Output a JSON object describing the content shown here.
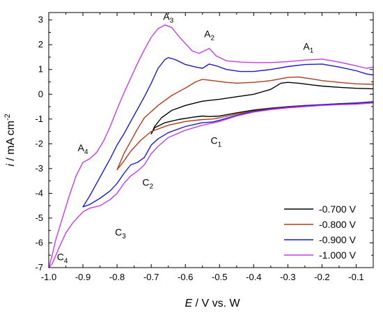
{
  "chart_data": {
    "type": "line",
    "xlabel": {
      "main": "E",
      "rest": " / V vs. W"
    },
    "ylabel": {
      "main": "i",
      "rest": " / mA cm",
      "sup": "-2"
    },
    "xlim": [
      -1.0,
      -0.05
    ],
    "ylim": [
      -7,
      3.3
    ],
    "xticks": [
      -1.0,
      -0.9,
      -0.8,
      -0.7,
      -0.6,
      -0.5,
      -0.4,
      -0.3,
      -0.2,
      -0.1
    ],
    "xtick_labels": [
      "-1.0",
      "-0.9",
      "-0.8",
      "-0.7",
      "-0.6",
      "-0.5",
      "-0.4",
      "-0.3",
      "-0.2",
      "-0.1"
    ],
    "yticks": [
      -7,
      -6,
      -5,
      -4,
      -3,
      -2,
      -1,
      0,
      1,
      2,
      3
    ],
    "ytick_labels": [
      "-7",
      "-6",
      "-5",
      "-4",
      "-3",
      "-2",
      "-1",
      "0",
      "1",
      "2",
      "3"
    ],
    "grid": false,
    "legend_position": "bottom-right",
    "series": [
      {
        "name": "-0.700 V",
        "color": "#000000",
        "points": [
          [
            -0.05,
            -0.35
          ],
          [
            -0.1,
            -0.38
          ],
          [
            -0.15,
            -0.4
          ],
          [
            -0.2,
            -0.43
          ],
          [
            -0.25,
            -0.46
          ],
          [
            -0.3,
            -0.5
          ],
          [
            -0.35,
            -0.56
          ],
          [
            -0.4,
            -0.64
          ],
          [
            -0.45,
            -0.75
          ],
          [
            -0.5,
            -0.88
          ],
          [
            -0.53,
            -0.9
          ],
          [
            -0.55,
            -0.88
          ],
          [
            -0.58,
            -0.93
          ],
          [
            -0.62,
            -1.02
          ],
          [
            -0.66,
            -1.15
          ],
          [
            -0.69,
            -1.35
          ],
          [
            -0.7,
            -1.6
          ],
          [
            -0.69,
            -1.3
          ],
          [
            -0.67,
            -0.95
          ],
          [
            -0.64,
            -0.65
          ],
          [
            -0.6,
            -0.45
          ],
          [
            -0.55,
            -0.28
          ],
          [
            -0.5,
            -0.2
          ],
          [
            -0.45,
            -0.1
          ],
          [
            -0.4,
            0.0
          ],
          [
            -0.35,
            0.2
          ],
          [
            -0.32,
            0.45
          ],
          [
            -0.3,
            0.48
          ],
          [
            -0.27,
            0.45
          ],
          [
            -0.23,
            0.38
          ],
          [
            -0.2,
            0.33
          ],
          [
            -0.15,
            0.28
          ],
          [
            -0.1,
            0.24
          ],
          [
            -0.05,
            0.22
          ]
        ]
      },
      {
        "name": "-0.800 V",
        "color": "#b03a1c",
        "points": [
          [
            -0.05,
            -0.33
          ],
          [
            -0.1,
            -0.36
          ],
          [
            -0.15,
            -0.38
          ],
          [
            -0.2,
            -0.42
          ],
          [
            -0.25,
            -0.45
          ],
          [
            -0.3,
            -0.5
          ],
          [
            -0.35,
            -0.58
          ],
          [
            -0.4,
            -0.68
          ],
          [
            -0.45,
            -0.8
          ],
          [
            -0.5,
            -0.95
          ],
          [
            -0.52,
            -1.0
          ],
          [
            -0.55,
            -1.02
          ],
          [
            -0.6,
            -1.1
          ],
          [
            -0.65,
            -1.25
          ],
          [
            -0.7,
            -1.5
          ],
          [
            -0.73,
            -1.85
          ],
          [
            -0.76,
            -2.3
          ],
          [
            -0.78,
            -2.7
          ],
          [
            -0.8,
            -3.05
          ],
          [
            -0.78,
            -2.4
          ],
          [
            -0.76,
            -1.9
          ],
          [
            -0.74,
            -1.4
          ],
          [
            -0.72,
            -0.95
          ],
          [
            -0.68,
            -0.45
          ],
          [
            -0.64,
            -0.05
          ],
          [
            -0.6,
            0.25
          ],
          [
            -0.57,
            0.5
          ],
          [
            -0.55,
            0.6
          ],
          [
            -0.52,
            0.55
          ],
          [
            -0.48,
            0.48
          ],
          [
            -0.45,
            0.45
          ],
          [
            -0.4,
            0.48
          ],
          [
            -0.35,
            0.55
          ],
          [
            -0.3,
            0.68
          ],
          [
            -0.27,
            0.7
          ],
          [
            -0.23,
            0.62
          ],
          [
            -0.2,
            0.55
          ],
          [
            -0.15,
            0.48
          ],
          [
            -0.1,
            0.42
          ],
          [
            -0.05,
            0.4
          ]
        ]
      },
      {
        "name": "-0.900 V",
        "color": "#1a1acc",
        "points": [
          [
            -0.05,
            -0.3
          ],
          [
            -0.1,
            -0.35
          ],
          [
            -0.15,
            -0.38
          ],
          [
            -0.2,
            -0.42
          ],
          [
            -0.25,
            -0.46
          ],
          [
            -0.3,
            -0.52
          ],
          [
            -0.35,
            -0.6
          ],
          [
            -0.4,
            -0.7
          ],
          [
            -0.45,
            -0.85
          ],
          [
            -0.5,
            -1.05
          ],
          [
            -0.52,
            -1.12
          ],
          [
            -0.55,
            -1.15
          ],
          [
            -0.6,
            -1.3
          ],
          [
            -0.65,
            -1.55
          ],
          [
            -0.68,
            -1.8
          ],
          [
            -0.7,
            -2.05
          ],
          [
            -0.72,
            -2.55
          ],
          [
            -0.74,
            -2.75
          ],
          [
            -0.76,
            -2.85
          ],
          [
            -0.78,
            -3.2
          ],
          [
            -0.8,
            -3.6
          ],
          [
            -0.82,
            -3.9
          ],
          [
            -0.85,
            -4.2
          ],
          [
            -0.88,
            -4.45
          ],
          [
            -0.9,
            -4.55
          ],
          [
            -0.88,
            -4.1
          ],
          [
            -0.86,
            -3.6
          ],
          [
            -0.84,
            -3.1
          ],
          [
            -0.82,
            -2.6
          ],
          [
            -0.8,
            -2.05
          ],
          [
            -0.78,
            -1.6
          ],
          [
            -0.76,
            -1.1
          ],
          [
            -0.74,
            -0.6
          ],
          [
            -0.72,
            -0.1
          ],
          [
            -0.7,
            0.45
          ],
          [
            -0.68,
            1.05
          ],
          [
            -0.66,
            1.4
          ],
          [
            -0.65,
            1.48
          ],
          [
            -0.63,
            1.4
          ],
          [
            -0.6,
            1.2
          ],
          [
            -0.57,
            1.1
          ],
          [
            -0.55,
            1.05
          ],
          [
            -0.53,
            1.22
          ],
          [
            -0.51,
            1.15
          ],
          [
            -0.48,
            1.0
          ],
          [
            -0.44,
            0.92
          ],
          [
            -0.4,
            0.92
          ],
          [
            -0.35,
            1.0
          ],
          [
            -0.3,
            1.12
          ],
          [
            -0.25,
            1.2
          ],
          [
            -0.2,
            1.22
          ],
          [
            -0.15,
            1.1
          ],
          [
            -0.1,
            0.95
          ],
          [
            -0.07,
            0.82
          ],
          [
            -0.05,
            0.78
          ]
        ]
      },
      {
        "name": "-1.000 V",
        "color": "#c43ce6",
        "points": [
          [
            -0.05,
            -0.35
          ],
          [
            -0.1,
            -0.4
          ],
          [
            -0.15,
            -0.42
          ],
          [
            -0.2,
            -0.45
          ],
          [
            -0.25,
            -0.5
          ],
          [
            -0.3,
            -0.55
          ],
          [
            -0.35,
            -0.62
          ],
          [
            -0.4,
            -0.72
          ],
          [
            -0.45,
            -0.88
          ],
          [
            -0.5,
            -1.1
          ],
          [
            -0.55,
            -1.25
          ],
          [
            -0.6,
            -1.45
          ],
          [
            -0.65,
            -1.75
          ],
          [
            -0.68,
            -2.1
          ],
          [
            -0.7,
            -2.4
          ],
          [
            -0.72,
            -2.85
          ],
          [
            -0.74,
            -3.1
          ],
          [
            -0.76,
            -3.3
          ],
          [
            -0.78,
            -3.6
          ],
          [
            -0.8,
            -4.0
          ],
          [
            -0.82,
            -4.25
          ],
          [
            -0.85,
            -4.5
          ],
          [
            -0.88,
            -4.6
          ],
          [
            -0.9,
            -4.75
          ],
          [
            -0.93,
            -5.2
          ],
          [
            -0.95,
            -5.6
          ],
          [
            -0.97,
            -6.2
          ],
          [
            -0.99,
            -6.85
          ],
          [
            -1.0,
            -7.0
          ],
          [
            -0.99,
            -6.5
          ],
          [
            -0.98,
            -5.9
          ],
          [
            -0.96,
            -5.0
          ],
          [
            -0.94,
            -4.1
          ],
          [
            -0.92,
            -3.3
          ],
          [
            -0.9,
            -2.75
          ],
          [
            -0.88,
            -2.6
          ],
          [
            -0.86,
            -2.35
          ],
          [
            -0.84,
            -1.9
          ],
          [
            -0.82,
            -1.3
          ],
          [
            -0.8,
            -0.6
          ],
          [
            -0.78,
            0.05
          ],
          [
            -0.76,
            0.65
          ],
          [
            -0.74,
            1.25
          ],
          [
            -0.72,
            1.8
          ],
          [
            -0.7,
            2.3
          ],
          [
            -0.68,
            2.65
          ],
          [
            -0.66,
            2.8
          ],
          [
            -0.64,
            2.7
          ],
          [
            -0.62,
            2.35
          ],
          [
            -0.6,
            2.05
          ],
          [
            -0.58,
            1.75
          ],
          [
            -0.56,
            1.65
          ],
          [
            -0.53,
            1.85
          ],
          [
            -0.51,
            1.55
          ],
          [
            -0.48,
            1.35
          ],
          [
            -0.44,
            1.3
          ],
          [
            -0.4,
            1.28
          ],
          [
            -0.35,
            1.28
          ],
          [
            -0.3,
            1.32
          ],
          [
            -0.25,
            1.38
          ],
          [
            -0.2,
            1.42
          ],
          [
            -0.15,
            1.3
          ],
          [
            -0.1,
            1.15
          ],
          [
            -0.07,
            1.05
          ],
          [
            -0.05,
            1.1
          ]
        ]
      }
    ],
    "annotations": [
      {
        "base": "A",
        "sub": "3",
        "x": -0.65,
        "y": 3.0
      },
      {
        "base": "A",
        "sub": "2",
        "x": -0.53,
        "y": 2.3
      },
      {
        "base": "A",
        "sub": "1",
        "x": -0.24,
        "y": 1.8
      },
      {
        "base": "A",
        "sub": "4",
        "x": -0.9,
        "y": -2.3
      },
      {
        "base": "C",
        "sub": "1",
        "x": -0.51,
        "y": -2.0
      },
      {
        "base": "C",
        "sub": "2",
        "x": -0.71,
        "y": -3.7
      },
      {
        "base": "C",
        "sub": "3",
        "x": -0.79,
        "y": -5.7
      },
      {
        "base": "C",
        "sub": "4",
        "x": -0.96,
        "y": -6.7
      }
    ]
  }
}
